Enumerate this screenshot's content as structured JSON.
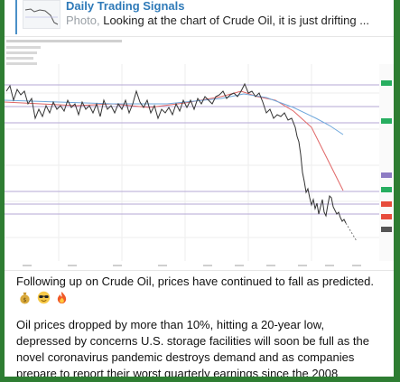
{
  "reply": {
    "channel": "Daily Trading Signals",
    "kind": "Photo,",
    "preview": "Looking at the chart of Crude Oil, it is just drifting ..."
  },
  "chart": {
    "header_lines": [
      "",
      "",
      "",
      "",
      ""
    ],
    "colors": {
      "price": "#333333",
      "ma_fast": "#e06666",
      "ma_slow": "#6fa8dc",
      "level": "#8e7cc3",
      "marker_green": "#27ae60",
      "marker_red": "#e74c3c"
    }
  },
  "message": {
    "paragraph1": "Following up on Crude Oil, prices have continued to fall as predicted.",
    "emojis": [
      "money-bag-icon",
      "sunglasses-face-icon",
      "fire-icon"
    ],
    "paragraph2": "Oil prices dropped by more than 10%, hitting a 20-year low, depressed by concerns U.S. storage facilities will soon be full as the novel coronavirus pandemic destroys demand and as companies prepare to report their worst quarterly earnings since the 2008"
  }
}
